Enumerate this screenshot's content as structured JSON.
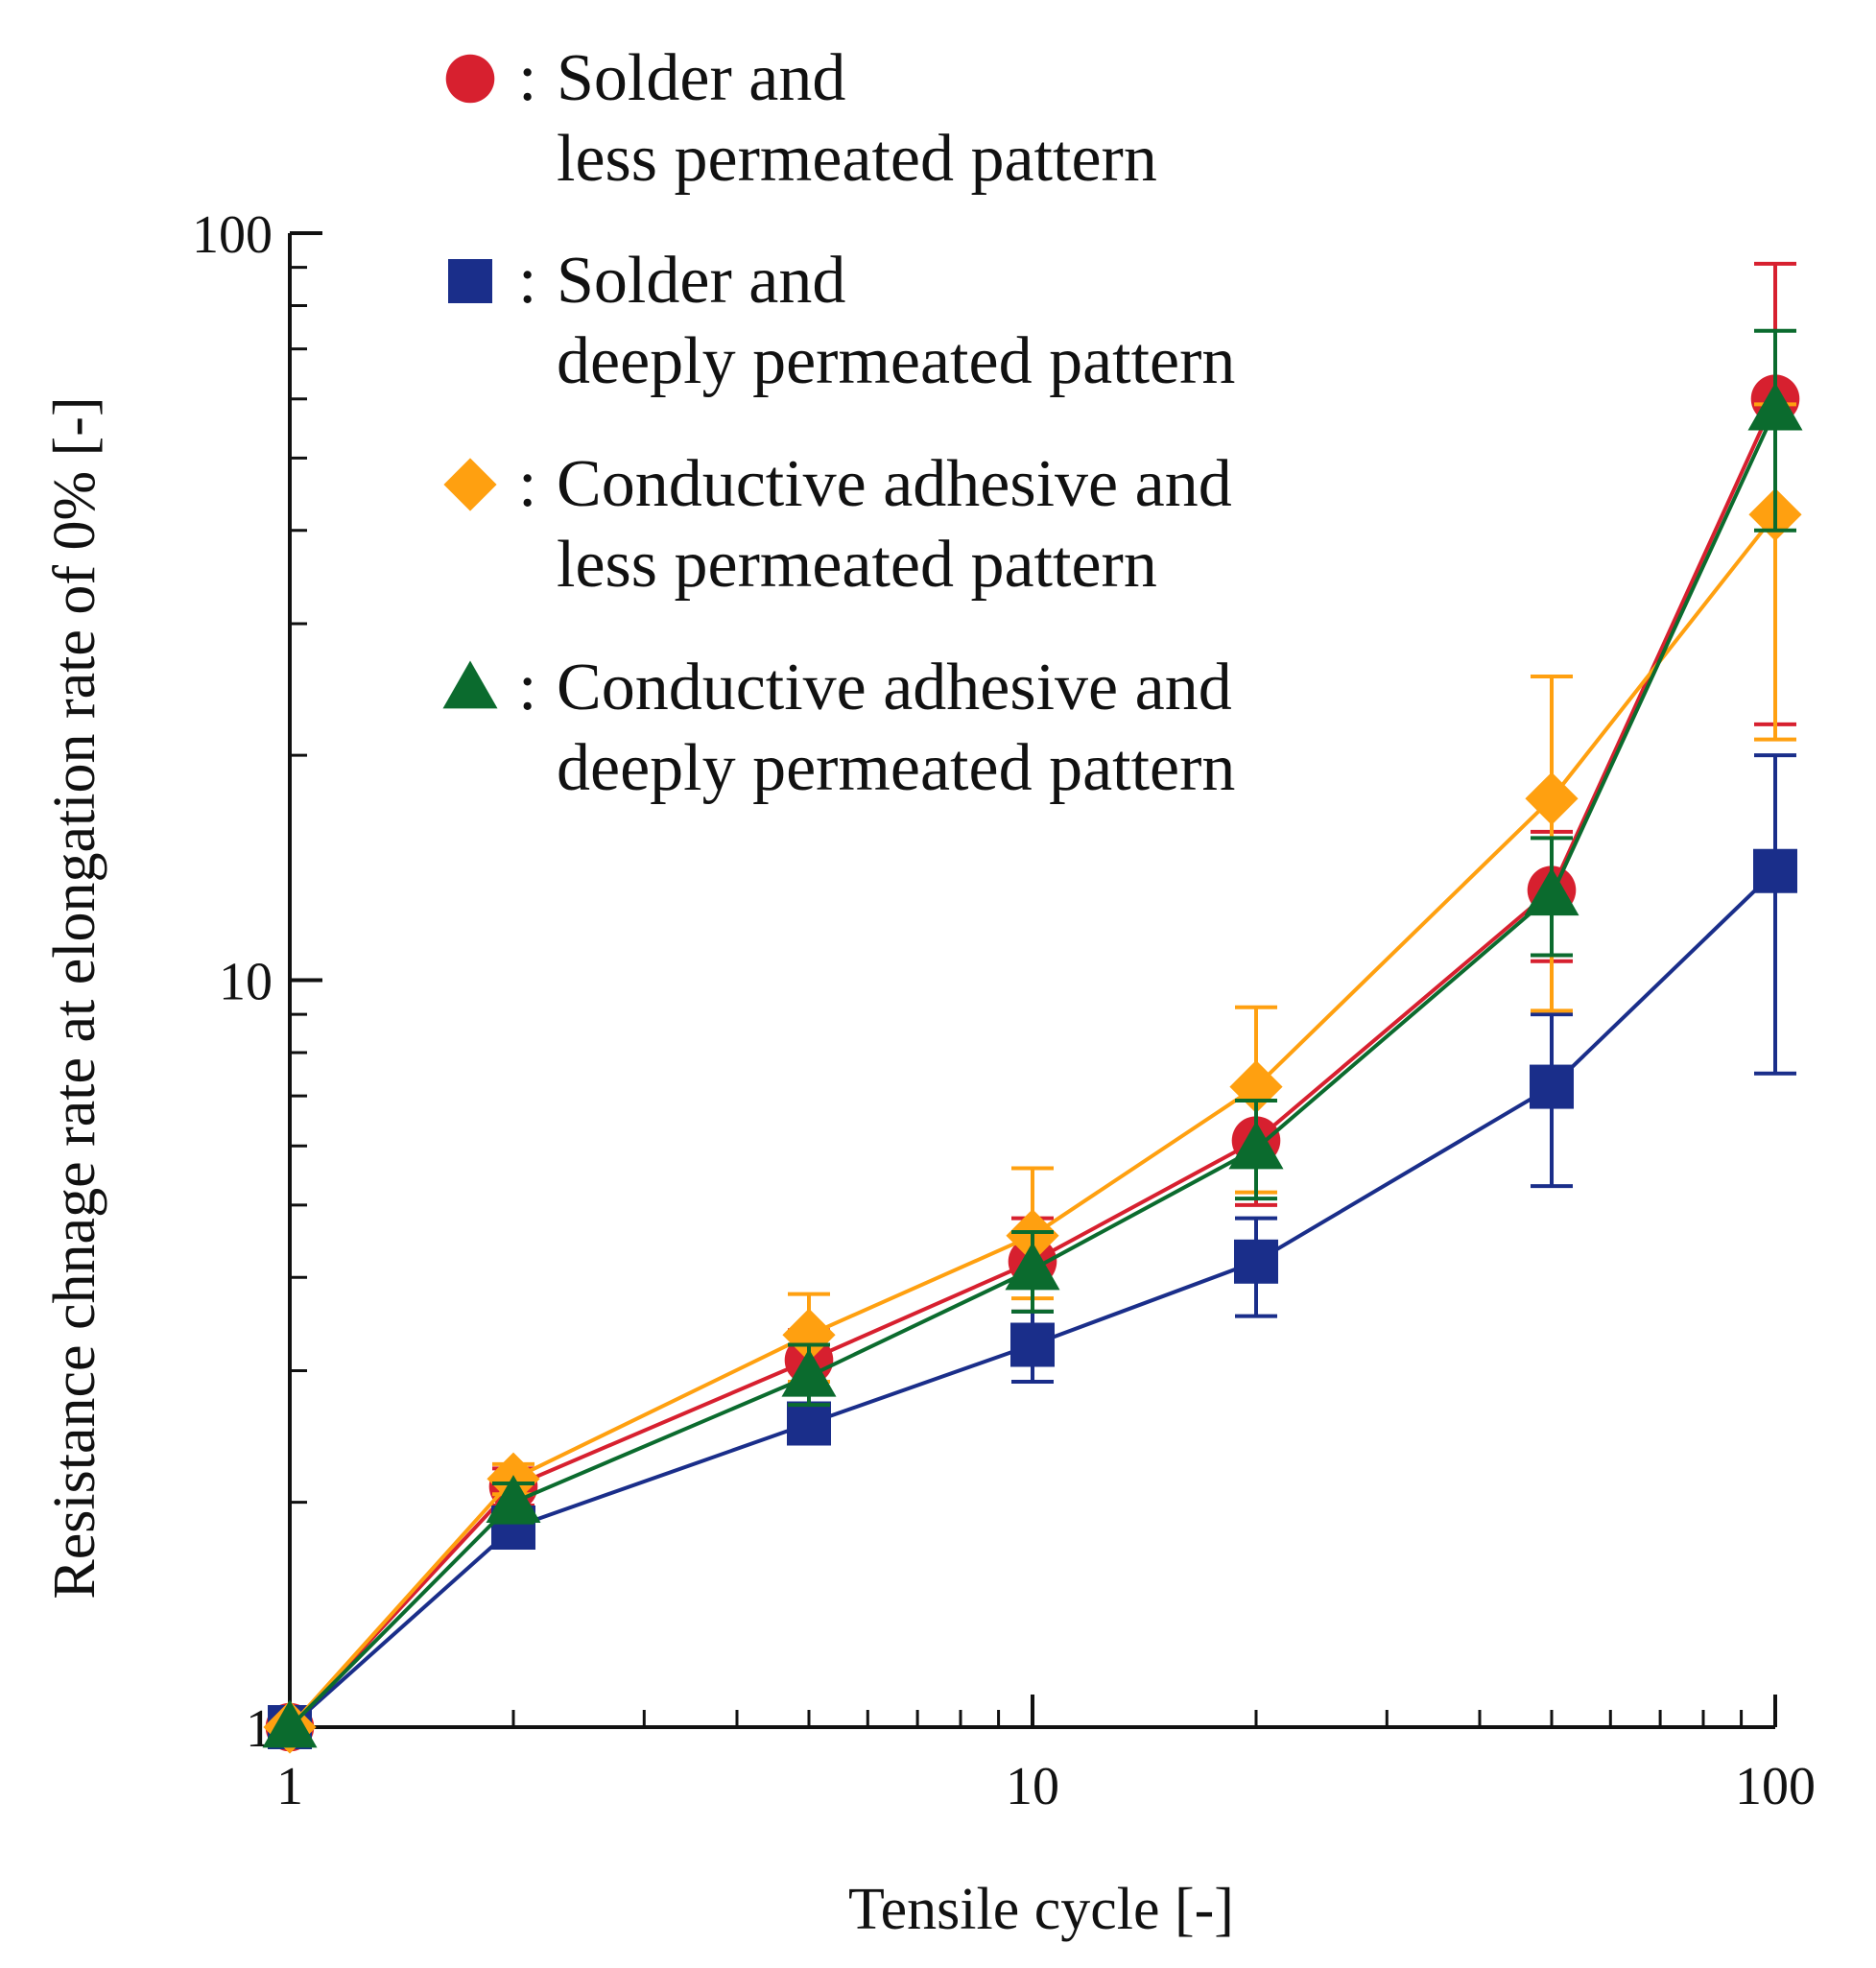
{
  "chart_data": {
    "type": "line",
    "title": "",
    "xlabel": "Tensile cycle [-]",
    "ylabel": "Resistance chnage rate at elongation rate of 0% [-]",
    "xscale": "log",
    "yscale": "log",
    "xlim": [
      1,
      100
    ],
    "ylim": [
      1,
      100
    ],
    "grid": false,
    "legend_position": "top-left",
    "x_ticks": [
      {
        "value": 1,
        "label": "1"
      },
      {
        "value": 10,
        "label": "10"
      },
      {
        "value": 100,
        "label": "100"
      }
    ],
    "y_ticks": [
      {
        "value": 1,
        "label": "1"
      },
      {
        "value": 10,
        "label": "10"
      },
      {
        "value": 100,
        "label": "100"
      }
    ],
    "x": [
      1,
      2,
      5,
      10,
      20,
      50,
      100
    ],
    "series": [
      {
        "name": "Solder and less permeated pattern",
        "legend_lines": [
          "Solder and",
          "less permeated pattern"
        ],
        "marker": "circle",
        "color": "#d7202f",
        "values": [
          1.0,
          2.1,
          3.1,
          4.2,
          6.1,
          13.2,
          60.0
        ],
        "err_low": [
          1.0,
          1.98,
          2.8,
          3.6,
          5.0,
          10.6,
          22.0
        ],
        "err_high": [
          1.0,
          2.22,
          3.4,
          4.8,
          7.2,
          15.8,
          91.0
        ]
      },
      {
        "name": "Solder and deeply permeated pattern",
        "legend_lines": [
          "Solder and",
          "deeply permeated pattern"
        ],
        "marker": "square",
        "color": "#1a2e8a",
        "values": [
          1.0,
          1.85,
          2.55,
          3.25,
          4.2,
          7.2,
          14.0
        ],
        "err_low": [
          1.0,
          1.75,
          2.4,
          2.9,
          3.55,
          5.3,
          7.5
        ],
        "err_high": [
          1.0,
          1.95,
          2.7,
          3.6,
          4.8,
          9.0,
          20.0
        ]
      },
      {
        "name": "Conductive adhesive and less permeated pattern",
        "legend_lines": [
          "Conductive adhesive and",
          "less permeated pattern"
        ],
        "marker": "diamond",
        "color": "#ffa010",
        "values": [
          1.0,
          2.15,
          3.35,
          4.55,
          7.2,
          17.5,
          42.0
        ],
        "err_low": [
          1.0,
          2.05,
          2.9,
          3.75,
          5.2,
          9.1,
          21.0
        ],
        "err_high": [
          1.0,
          2.25,
          3.8,
          5.6,
          9.2,
          25.5,
          59.0
        ]
      },
      {
        "name": "Conductive adhesive and deeply permeated pattern",
        "legend_lines": [
          "Conductive adhesive and",
          "deeply permeated pattern"
        ],
        "marker": "triangle",
        "color": "#0b6b2e",
        "values": [
          1.0,
          2.0,
          2.95,
          4.1,
          5.95,
          13.0,
          58.0
        ],
        "err_low": [
          1.0,
          1.88,
          2.7,
          3.6,
          5.1,
          10.8,
          40.0
        ],
        "err_high": [
          1.0,
          2.12,
          3.25,
          4.6,
          6.9,
          15.5,
          74.0
        ]
      }
    ]
  }
}
